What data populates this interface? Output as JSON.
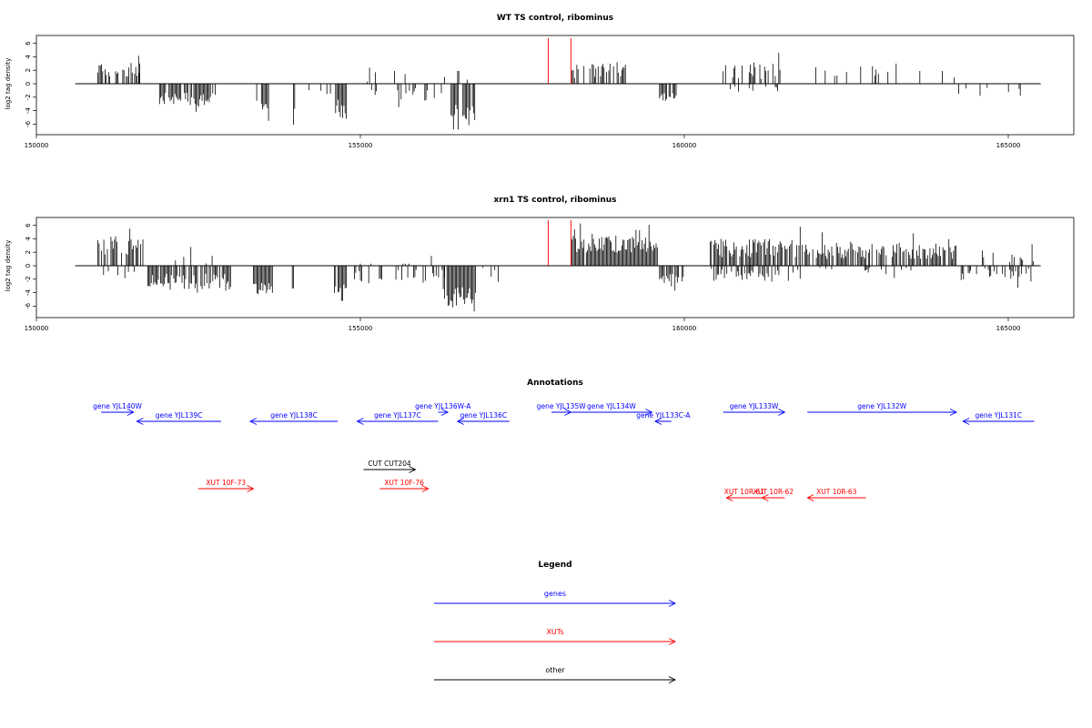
{
  "colors": {
    "gene": "#0000ff",
    "xut": "#ff0000",
    "other": "#000000",
    "marker": "#ff0000",
    "signal": "#000000"
  },
  "chart_data": [
    {
      "type": "bar",
      "title": "WT TS control, ribominus",
      "ylabel": "log2 tag density",
      "xlim": [
        150000,
        165000
      ],
      "ylim": [
        -7,
        7
      ],
      "x_ticks": [
        150000,
        155000,
        160000,
        165000
      ],
      "y_ticks": [
        6,
        4,
        2,
        0,
        -2,
        -4,
        -6
      ],
      "baseline_range": [
        150600,
        165500
      ],
      "markers": [
        157900,
        158250
      ],
      "signal_regions": [
        {
          "x_start": 150950,
          "x_end": 151600,
          "polarity": 1,
          "mean": 2.2,
          "spread": 1.2,
          "density": 0.6
        },
        {
          "x_start": 151450,
          "x_end": 151650,
          "polarity": 1,
          "mean": 3.5,
          "spread": 2.2,
          "density": 0.3
        },
        {
          "x_start": 151900,
          "x_end": 152800,
          "polarity": -1,
          "mean": 2.2,
          "spread": 1.0,
          "density": 0.7
        },
        {
          "x_start": 153400,
          "x_end": 153600,
          "polarity": -1,
          "mean": 3.5,
          "spread": 1.0,
          "density": 0.9
        },
        {
          "x_start": 153950,
          "x_end": 154000,
          "polarity": -1,
          "mean": 3.8,
          "spread": 1.0,
          "density": 0.9
        },
        {
          "x_start": 154100,
          "x_end": 154550,
          "polarity": -1,
          "mean": 1.0,
          "spread": 0.6,
          "density": 0.2
        },
        {
          "x_start": 154600,
          "x_end": 154800,
          "polarity": -1,
          "mean": 3.8,
          "spread": 1.5,
          "density": 0.9
        },
        {
          "x_start": 155050,
          "x_end": 155900,
          "polarity": 1,
          "mean": 1.2,
          "spread": 1.2,
          "density": 0.15
        },
        {
          "x_start": 155100,
          "x_end": 156300,
          "polarity": -1,
          "mean": 1.6,
          "spread": 1.0,
          "density": 0.3
        },
        {
          "x_start": 156400,
          "x_end": 156800,
          "polarity": -1,
          "mean": 4.8,
          "spread": 1.8,
          "density": 0.95
        },
        {
          "x_start": 156300,
          "x_end": 157600,
          "polarity": 1,
          "mean": 1.0,
          "spread": 1.0,
          "density": 0.1
        },
        {
          "x_start": 158250,
          "x_end": 159100,
          "polarity": 1,
          "mean": 2.0,
          "spread": 1.2,
          "density": 0.6
        },
        {
          "x_start": 159600,
          "x_end": 159900,
          "polarity": -1,
          "mean": 2.0,
          "spread": 0.8,
          "density": 0.7
        },
        {
          "x_start": 160600,
          "x_end": 161500,
          "polarity": 1,
          "mean": 1.8,
          "spread": 1.2,
          "density": 0.5
        },
        {
          "x_start": 160600,
          "x_end": 161500,
          "polarity": -1,
          "mean": 0.8,
          "spread": 0.4,
          "density": 0.2
        },
        {
          "x_start": 161900,
          "x_end": 164200,
          "polarity": 1,
          "mean": 1.6,
          "spread": 1.0,
          "density": 0.15
        },
        {
          "x_start": 164200,
          "x_end": 165300,
          "polarity": -1,
          "mean": 1.2,
          "spread": 0.6,
          "density": 0.1
        }
      ]
    },
    {
      "type": "bar",
      "title": "xrn1 TS control, ribominus",
      "ylabel": "log2 tag density",
      "xlim": [
        150000,
        165000
      ],
      "ylim": [
        -7,
        7
      ],
      "x_ticks": [
        150000,
        155000,
        160000,
        165000
      ],
      "y_ticks": [
        6,
        4,
        2,
        0,
        -2,
        -4,
        -6
      ],
      "baseline_range": [
        150600,
        165500
      ],
      "markers": [
        157900,
        158250
      ],
      "signal_regions": [
        {
          "x_start": 150950,
          "x_end": 151650,
          "polarity": 1,
          "mean": 2.8,
          "spread": 1.2,
          "density": 0.75
        },
        {
          "x_start": 151000,
          "x_end": 151700,
          "polarity": -1,
          "mean": 1.4,
          "spread": 0.8,
          "density": 0.2
        },
        {
          "x_start": 151700,
          "x_end": 153000,
          "polarity": -1,
          "mean": 2.4,
          "spread": 1.2,
          "density": 0.8
        },
        {
          "x_start": 152000,
          "x_end": 153000,
          "polarity": 1,
          "mean": 1.0,
          "spread": 0.8,
          "density": 0.1
        },
        {
          "x_start": 153350,
          "x_end": 153650,
          "polarity": -1,
          "mean": 3.5,
          "spread": 1.0,
          "density": 0.95
        },
        {
          "x_start": 153950,
          "x_end": 154000,
          "polarity": -1,
          "mean": 4.0,
          "spread": 1.0,
          "density": 0.9
        },
        {
          "x_start": 154600,
          "x_end": 154800,
          "polarity": -1,
          "mean": 4.0,
          "spread": 1.6,
          "density": 0.9
        },
        {
          "x_start": 154800,
          "x_end": 156300,
          "polarity": -1,
          "mean": 1.6,
          "spread": 1.0,
          "density": 0.35
        },
        {
          "x_start": 155000,
          "x_end": 156300,
          "polarity": 1,
          "mean": 0.8,
          "spread": 0.8,
          "density": 0.1
        },
        {
          "x_start": 156300,
          "x_end": 156800,
          "polarity": -1,
          "mean": 4.8,
          "spread": 1.8,
          "density": 0.95
        },
        {
          "x_start": 156800,
          "x_end": 157300,
          "polarity": -1,
          "mean": 1.2,
          "spread": 1.4,
          "density": 0.2
        },
        {
          "x_start": 157200,
          "x_end": 157800,
          "polarity": 1,
          "mean": 1.0,
          "spread": 1.0,
          "density": 0.08
        },
        {
          "x_start": 158250,
          "x_end": 159600,
          "polarity": 1,
          "mean": 3.2,
          "spread": 1.3,
          "density": 0.95
        },
        {
          "x_start": 159600,
          "x_end": 160000,
          "polarity": -1,
          "mean": 2.2,
          "spread": 1.0,
          "density": 0.85
        },
        {
          "x_start": 160400,
          "x_end": 161800,
          "polarity": 1,
          "mean": 2.6,
          "spread": 1.4,
          "density": 0.85
        },
        {
          "x_start": 160400,
          "x_end": 161800,
          "polarity": -1,
          "mean": 1.4,
          "spread": 1.0,
          "density": 0.45
        },
        {
          "x_start": 161800,
          "x_end": 164200,
          "polarity": 1,
          "mean": 2.2,
          "spread": 1.2,
          "density": 0.75
        },
        {
          "x_start": 162000,
          "x_end": 164000,
          "polarity": -1,
          "mean": 0.8,
          "spread": 0.6,
          "density": 0.15
        },
        {
          "x_start": 164200,
          "x_end": 165400,
          "polarity": -1,
          "mean": 1.4,
          "spread": 1.0,
          "density": 0.55
        },
        {
          "x_start": 164600,
          "x_end": 165400,
          "polarity": 1,
          "mean": 1.4,
          "spread": 1.0,
          "density": 0.2
        }
      ]
    }
  ],
  "annotations": {
    "title": "Annotations",
    "xlim": [
      150000,
      165000
    ],
    "features": [
      {
        "label": "gene YJL140W",
        "kind": "gene",
        "start": 151000,
        "end": 151500,
        "strand": "+",
        "row": 0
      },
      {
        "label": "gene YJL139C",
        "kind": "gene",
        "start": 151550,
        "end": 152850,
        "strand": "-",
        "row": 1
      },
      {
        "label": "gene YJL138C",
        "kind": "gene",
        "start": 153300,
        "end": 154650,
        "strand": "-",
        "row": 1
      },
      {
        "label": "gene YJL137C",
        "kind": "gene",
        "start": 154950,
        "end": 156200,
        "strand": "-",
        "row": 1
      },
      {
        "label": "gene YJL136W-A",
        "kind": "gene",
        "start": 156200,
        "end": 156350,
        "strand": "+",
        "row": 0
      },
      {
        "label": "gene YJL136C",
        "kind": "gene",
        "start": 156500,
        "end": 157300,
        "strand": "-",
        "row": 1
      },
      {
        "label": "gene YJL135W",
        "kind": "gene",
        "start": 157950,
        "end": 158250,
        "strand": "+",
        "row": 0
      },
      {
        "label": "gene YJL134W",
        "kind": "gene",
        "start": 158250,
        "end": 159500,
        "strand": "+",
        "row": 0
      },
      {
        "label": "gene YJL133C-A",
        "kind": "gene",
        "start": 159550,
        "end": 159800,
        "strand": "-",
        "row": 1
      },
      {
        "label": "gene YJL133W",
        "kind": "gene",
        "start": 160600,
        "end": 161550,
        "strand": "+",
        "row": 0
      },
      {
        "label": "gene YJL132W",
        "kind": "gene",
        "start": 161900,
        "end": 164200,
        "strand": "+",
        "row": 0
      },
      {
        "label": "gene YJL131C",
        "kind": "gene",
        "start": 164300,
        "end": 165400,
        "strand": "-",
        "row": 1
      },
      {
        "label": "CUT CUT204",
        "kind": "other",
        "start": 155050,
        "end": 155850,
        "strand": "+",
        "row": 2
      },
      {
        "label": "XUT 10F-73",
        "kind": "xut",
        "start": 152500,
        "end": 153350,
        "strand": "+",
        "row": 3
      },
      {
        "label": "XUT 10F-76",
        "kind": "xut",
        "start": 155300,
        "end": 156050,
        "strand": "+",
        "row": 3
      },
      {
        "label": "XUT 10R-61",
        "kind": "xut",
        "start": 160650,
        "end": 161200,
        "strand": "-",
        "row": 4
      },
      {
        "label": "XUT 10R-62",
        "kind": "xut",
        "start": 161200,
        "end": 161550,
        "strand": "-",
        "row": 4
      },
      {
        "label": "XUT 10R-63",
        "kind": "xut",
        "start": 161900,
        "end": 162800,
        "strand": "-",
        "row": 4
      }
    ]
  },
  "legend": {
    "title": "Legend",
    "items": [
      {
        "label": "genes",
        "kind": "gene"
      },
      {
        "label": "XUTs",
        "kind": "xut"
      },
      {
        "label": "other",
        "kind": "other"
      }
    ]
  }
}
